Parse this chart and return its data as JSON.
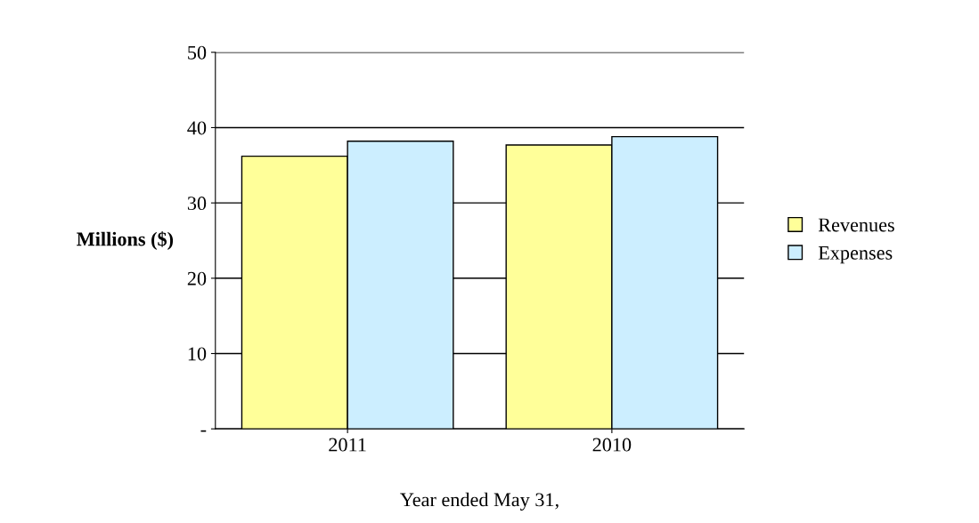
{
  "chart_data": {
    "type": "bar",
    "ylabel": "Millions ($)",
    "xlabel": "Year ended May 31,",
    "categories": [
      "2011",
      "2010"
    ],
    "series": [
      {
        "name": "Revenues",
        "color": "#ffff99",
        "values": [
          36.2,
          37.7
        ]
      },
      {
        "name": "Expenses",
        "color": "#cceeff",
        "values": [
          38.2,
          38.8
        ]
      }
    ],
    "ylim": [
      0,
      50
    ],
    "yticks": [
      {
        "value": 0,
        "label": "-"
      },
      10,
      20,
      30,
      40,
      50
    ],
    "grid": "y",
    "legend": "right"
  }
}
